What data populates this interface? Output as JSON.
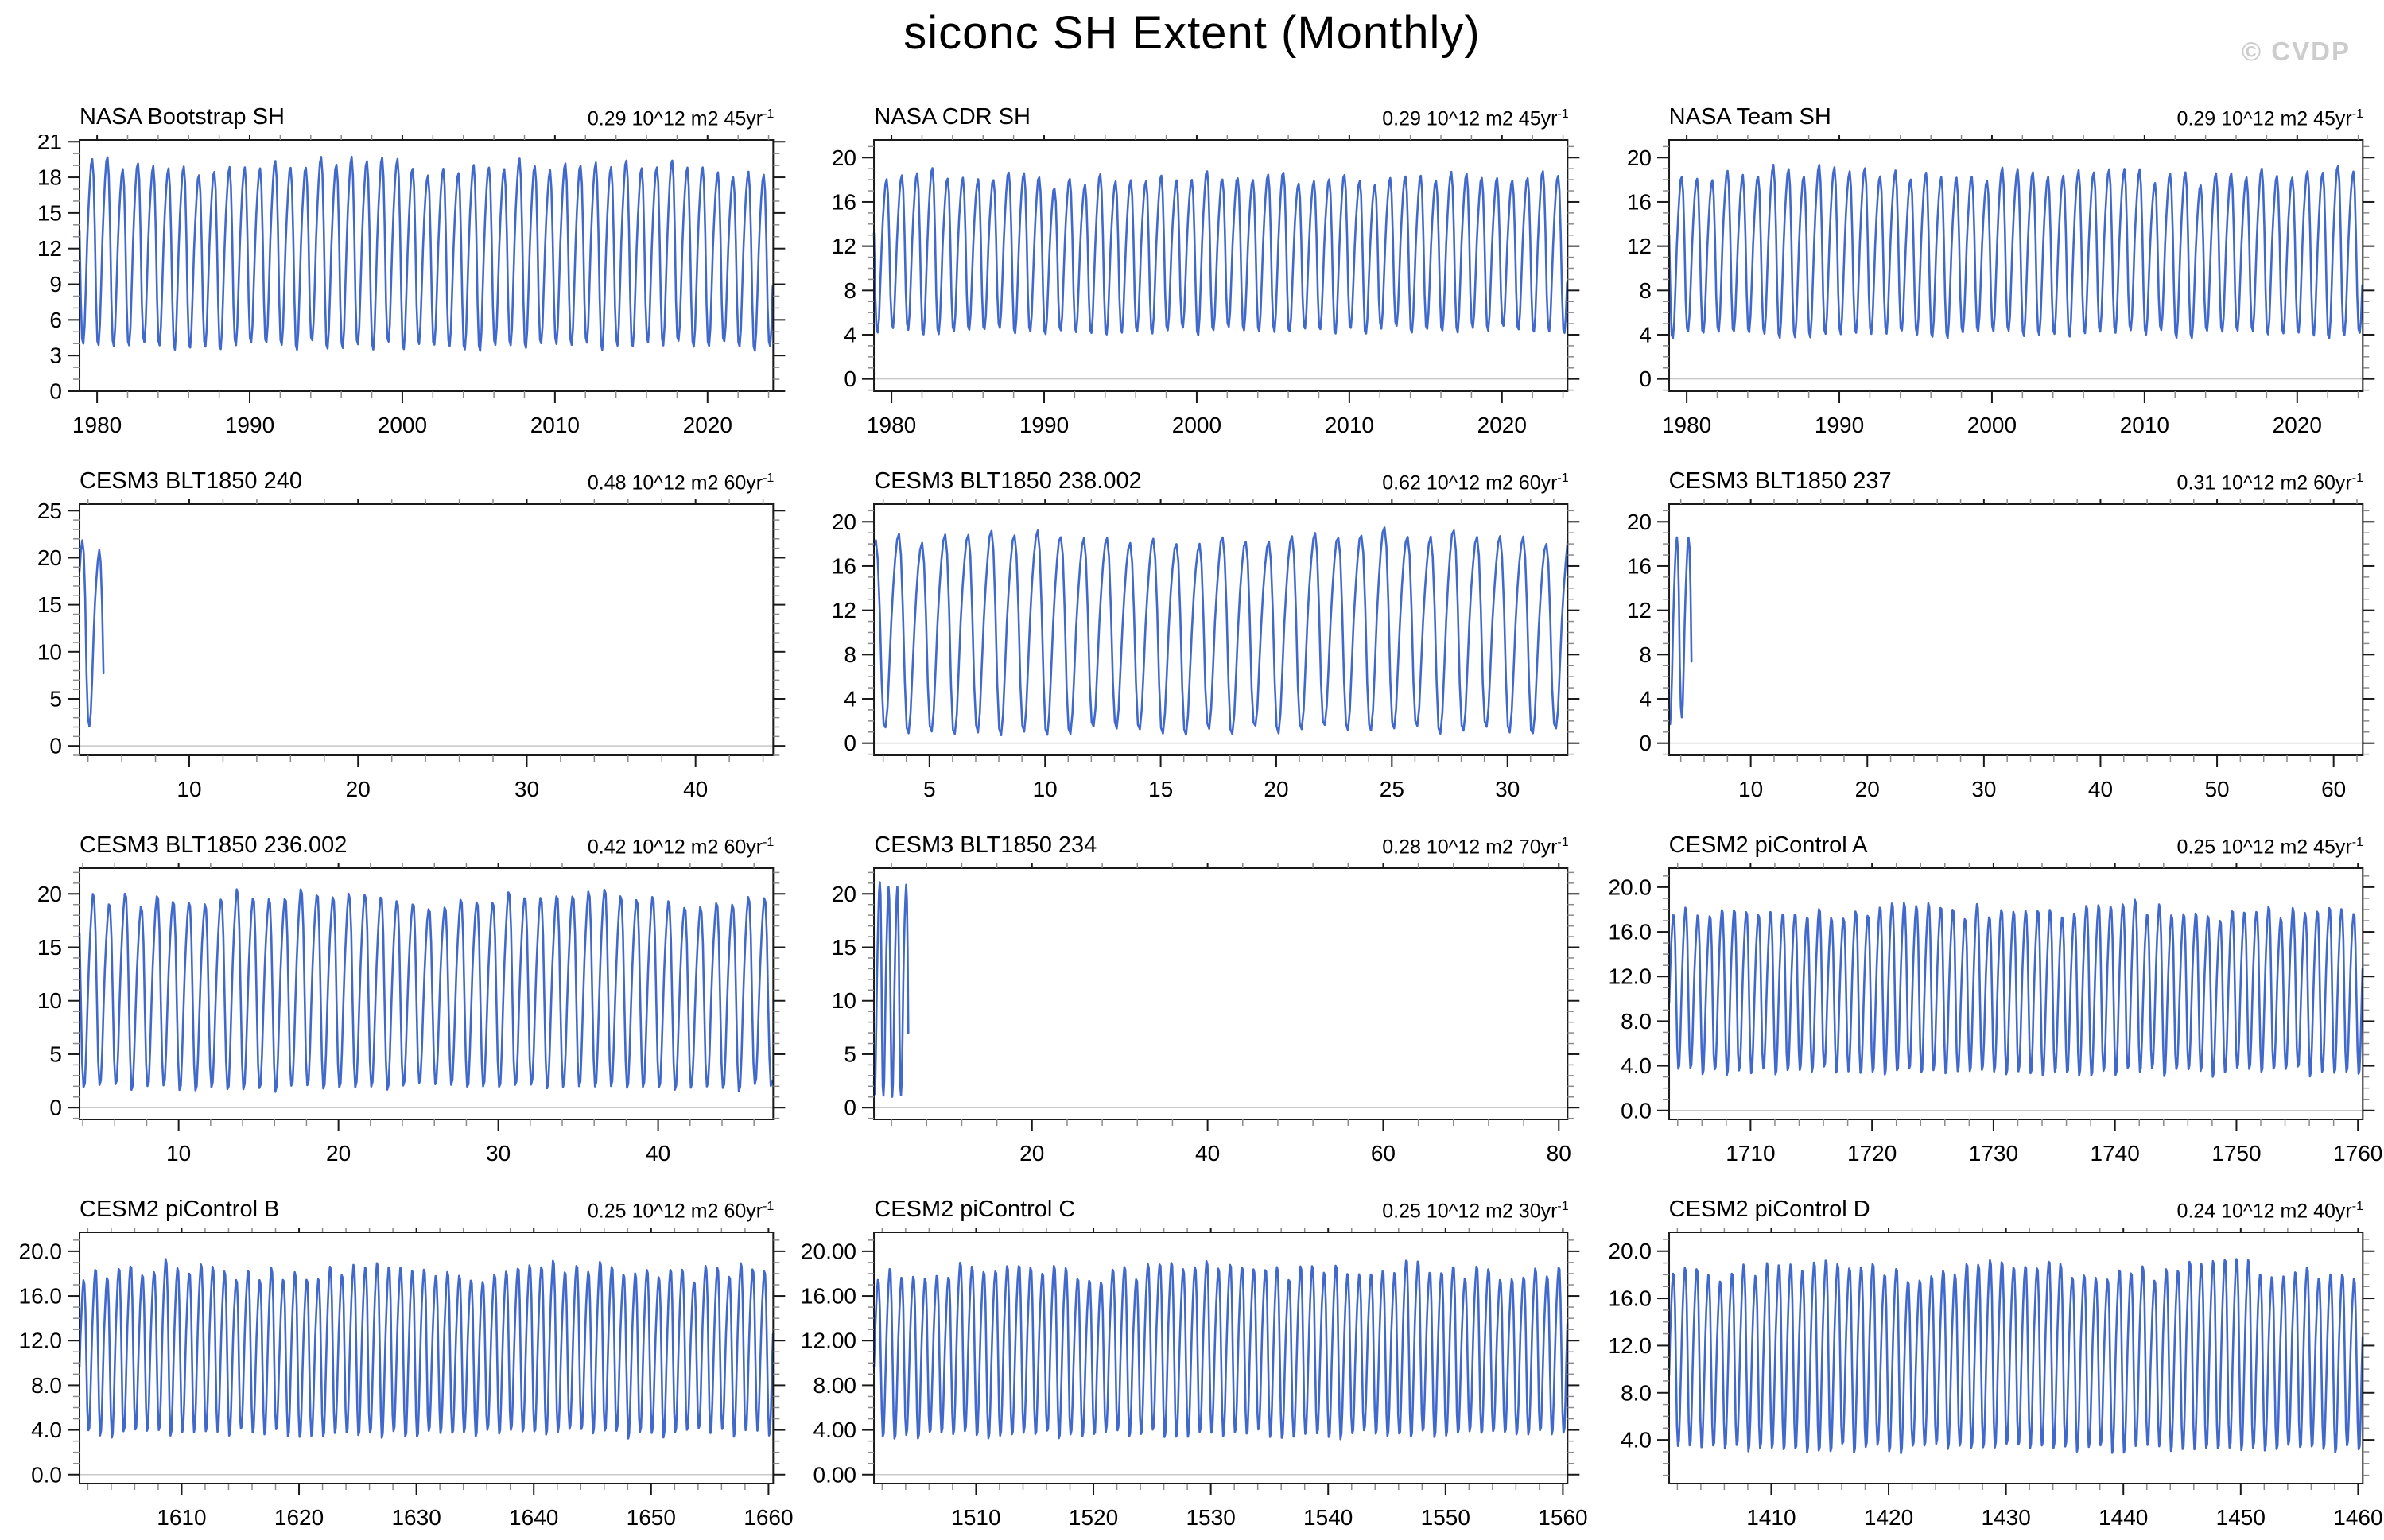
{
  "title": "siconc SH Extent (Monthly)",
  "watermark": "© CVDP",
  "line_color": "#4169cd",
  "frame_color": "#1a1a1a",
  "minor_tick_color": "#8a8a8a",
  "zero_line_color": "#c8c8c8",
  "seasonal_cycle_normalized": [
    0.05,
    0.0,
    0.07,
    0.28,
    0.52,
    0.7,
    0.84,
    0.95,
    1.0,
    0.94,
    0.7,
    0.3
  ],
  "chart_data": [
    {
      "type": "line",
      "title": "NASA Bootstrap SH",
      "trend_text": "0.29 10^12 m2 45yr",
      "trend_sup": "-1",
      "x_start": 1978.85,
      "x_end": 2024.3,
      "x_ticks": [
        1980,
        1990,
        2000,
        2010,
        2020
      ],
      "x_tick_labels": [
        "1980",
        "1990",
        "2000",
        "2010",
        "2020"
      ],
      "x_minor_step": 2,
      "y_min": 0,
      "y_max": 21.15,
      "y_ticks": [
        0,
        3,
        6,
        9,
        12,
        15,
        18,
        21
      ],
      "y_tick_labels": [
        "0",
        "3",
        "6",
        "9",
        "12",
        "15",
        "18",
        "21"
      ],
      "y_minor_step": 1,
      "seasonal_min": 3.6,
      "seasonal_max": 19.2,
      "zero_line": false,
      "seed": 11
    },
    {
      "type": "line",
      "title": "NASA CDR SH",
      "trend_text": "0.29 10^12 m2 45yr",
      "trend_sup": "-1",
      "x_start": 1978.85,
      "x_end": 2024.3,
      "x_ticks": [
        1980,
        1990,
        2000,
        2010,
        2020
      ],
      "x_tick_labels": [
        "1980",
        "1990",
        "2000",
        "2010",
        "2020"
      ],
      "x_minor_step": 2,
      "y_min": -1.1,
      "y_max": 21.6,
      "y_ticks": [
        0,
        4,
        8,
        12,
        16,
        20
      ],
      "y_tick_labels": [
        "0",
        "4",
        "8",
        "12",
        "16",
        "20"
      ],
      "y_minor_step": 1,
      "seasonal_min": 4.2,
      "seasonal_max": 18.5,
      "zero_line": true,
      "seed": 22
    },
    {
      "type": "line",
      "title": "NASA Team SH",
      "trend_text": "0.29 10^12 m2 45yr",
      "trend_sup": "-1",
      "x_start": 1978.85,
      "x_end": 2024.3,
      "x_ticks": [
        1980,
        1990,
        2000,
        2010,
        2020
      ],
      "x_tick_labels": [
        "1980",
        "1990",
        "2000",
        "2010",
        "2020"
      ],
      "x_minor_step": 2,
      "y_min": -1.1,
      "y_max": 21.6,
      "y_ticks": [
        0,
        4,
        8,
        12,
        16,
        20
      ],
      "y_tick_labels": [
        "0",
        "4",
        "8",
        "12",
        "16",
        "20"
      ],
      "y_minor_step": 1,
      "seasonal_min": 3.8,
      "seasonal_max": 18.7,
      "zero_line": true,
      "seed": 33
    },
    {
      "type": "line",
      "title": "CESM3 BLT1850 240",
      "trend_text": "0.48 10^12 m2 60yr",
      "trend_sup": "-1",
      "x_start": 3.5,
      "x_end": 44.6,
      "x_ticks": [
        10,
        20,
        30,
        40
      ],
      "x_tick_labels": [
        "10",
        "20",
        "30",
        "40"
      ],
      "x_minor_step": 2,
      "y_min": -1.0,
      "y_max": 25.7,
      "y_ticks": [
        0,
        5,
        10,
        15,
        20,
        25
      ],
      "y_tick_labels": [
        "0",
        "5",
        "10",
        "15",
        "20",
        "25"
      ],
      "y_minor_step": 1,
      "seasonal_min": 1.8,
      "seasonal_max": 21.0,
      "zero_line": true,
      "seed": 44
    },
    {
      "type": "line",
      "title": "CESM3 BLT1850 238.002",
      "trend_text": "0.62 10^12 m2 60yr",
      "trend_sup": "-1",
      "x_start": 2.6,
      "x_end": 32.6,
      "x_ticks": [
        5,
        10,
        15,
        20,
        25,
        30
      ],
      "x_tick_labels": [
        "5",
        "10",
        "15",
        "20",
        "25",
        "30"
      ],
      "x_minor_step": 1,
      "y_min": -1.1,
      "y_max": 21.6,
      "y_ticks": [
        0,
        4,
        8,
        12,
        16,
        20
      ],
      "y_tick_labels": [
        "0",
        "4",
        "8",
        "12",
        "16",
        "20"
      ],
      "y_minor_step": 1,
      "seasonal_min": 0.9,
      "seasonal_max": 18.9,
      "zero_line": true,
      "seed": 55
    },
    {
      "type": "line",
      "title": "CESM3 BLT1850 237",
      "trend_text": "0.31 10^12 m2 60yr",
      "trend_sup": "-1",
      "x_start": 3.0,
      "x_end": 62.5,
      "x_ticks": [
        10,
        20,
        30,
        40,
        50,
        60
      ],
      "x_tick_labels": [
        "10",
        "20",
        "30",
        "40",
        "50",
        "60"
      ],
      "x_minor_step": 2,
      "y_min": -1.1,
      "y_max": 21.6,
      "y_ticks": [
        0,
        4,
        8,
        12,
        16,
        20
      ],
      "y_tick_labels": [
        "0",
        "4",
        "8",
        "12",
        "16",
        "20"
      ],
      "y_minor_step": 1,
      "seasonal_min": 2.2,
      "seasonal_max": 19.4,
      "zero_line": true,
      "seed": 66
    },
    {
      "type": "line",
      "title": "CESM3 BLT1850 236.002",
      "trend_text": "0.42 10^12 m2 60yr",
      "trend_sup": "-1",
      "x_start": 3.8,
      "x_end": 47.2,
      "x_ticks": [
        10,
        20,
        30,
        40
      ],
      "x_tick_labels": [
        "10",
        "20",
        "30",
        "40"
      ],
      "x_minor_step": 2,
      "y_min": -1.1,
      "y_max": 22.4,
      "y_ticks": [
        0,
        5,
        10,
        15,
        20
      ],
      "y_tick_labels": [
        "0",
        "5",
        "10",
        "15",
        "20"
      ],
      "y_minor_step": 1,
      "seasonal_min": 1.6,
      "seasonal_max": 20.0,
      "zero_line": true,
      "seed": 77
    },
    {
      "type": "line",
      "title": "CESM3 BLT1850 234",
      "trend_text": "0.28 10^12 m2 70yr",
      "trend_sup": "-1",
      "x_start": 2.0,
      "x_end": 81.0,
      "x_ticks": [
        20,
        40,
        60,
        80
      ],
      "x_tick_labels": [
        "20",
        "40",
        "60",
        "80"
      ],
      "x_minor_step": 4,
      "y_min": -1.1,
      "y_max": 22.4,
      "y_ticks": [
        0,
        5,
        10,
        15,
        20
      ],
      "y_tick_labels": [
        "0",
        "5",
        "10",
        "15",
        "20"
      ],
      "y_minor_step": 1,
      "seasonal_min": 1.2,
      "seasonal_max": 20.4,
      "zero_line": true,
      "seed": 88
    },
    {
      "type": "line",
      "title": "CESM2 piControl A",
      "trend_text": "0.25 10^12 m2 45yr",
      "trend_sup": "-1",
      "x_start": 1703.3,
      "x_end": 1760.4,
      "x_ticks": [
        1710,
        1720,
        1730,
        1740,
        1750,
        1760
      ],
      "x_tick_labels": [
        "1710",
        "1720",
        "1730",
        "1740",
        "1750",
        "1760"
      ],
      "x_minor_step": 2,
      "y_min": -0.8,
      "y_max": 21.7,
      "y_ticks": [
        0,
        4,
        8,
        12,
        16,
        20
      ],
      "y_tick_labels": [
        "0.0",
        "4.0",
        "8.0",
        "12.0",
        "16.0",
        "20.0"
      ],
      "y_minor_step": 1,
      "seasonal_min": 3.2,
      "seasonal_max": 18.1,
      "zero_line": true,
      "seed": 99
    },
    {
      "type": "line",
      "title": "CESM2 piControl B",
      "trend_text": "0.25 10^12 m2 60yr",
      "trend_sup": "-1",
      "x_start": 1601.3,
      "x_end": 1660.4,
      "x_ticks": [
        1610,
        1620,
        1630,
        1640,
        1650,
        1660
      ],
      "x_tick_labels": [
        "1610",
        "1620",
        "1630",
        "1640",
        "1650",
        "1660"
      ],
      "x_minor_step": 2,
      "y_min": -0.8,
      "y_max": 21.7,
      "y_ticks": [
        0,
        4,
        8,
        12,
        16,
        20
      ],
      "y_tick_labels": [
        "0.0",
        "4.0",
        "8.0",
        "12.0",
        "16.0",
        "20.0"
      ],
      "y_minor_step": 1,
      "seasonal_min": 3.4,
      "seasonal_max": 18.5,
      "zero_line": true,
      "seed": 110
    },
    {
      "type": "line",
      "title": "CESM2 piControl C",
      "trend_text": "0.25 10^12 m2 30yr",
      "trend_sup": "-1",
      "x_start": 1501.3,
      "x_end": 1560.4,
      "x_ticks": [
        1510,
        1520,
        1530,
        1540,
        1550,
        1560
      ],
      "x_tick_labels": [
        "1510",
        "1520",
        "1530",
        "1540",
        "1550",
        "1560"
      ],
      "x_minor_step": 2,
      "y_min": -0.8,
      "y_max": 21.7,
      "y_ticks": [
        0,
        4,
        8,
        12,
        16,
        20
      ],
      "y_tick_labels": [
        "0.00",
        "4.00",
        "8.00",
        "12.00",
        "16.00",
        "20.00"
      ],
      "y_minor_step": 1,
      "seasonal_min": 3.3,
      "seasonal_max": 18.6,
      "zero_line": true,
      "seed": 121
    },
    {
      "type": "line",
      "title": "CESM2 piControl D",
      "trend_text": "0.24 10^12 m2 40yr",
      "trend_sup": "-1",
      "x_start": 1401.3,
      "x_end": 1460.4,
      "x_ticks": [
        1410,
        1420,
        1430,
        1440,
        1450,
        1460
      ],
      "x_tick_labels": [
        "1410",
        "1420",
        "1430",
        "1440",
        "1450",
        "1460"
      ],
      "x_minor_step": 2,
      "y_min": 0.3,
      "y_max": 21.6,
      "y_ticks": [
        4,
        8,
        12,
        16,
        20
      ],
      "y_tick_labels": [
        "4.0",
        "8.0",
        "12.0",
        "16.0",
        "20.0"
      ],
      "y_minor_step": 1,
      "seasonal_min": 3.0,
      "seasonal_max": 18.7,
      "zero_line": false,
      "seed": 132
    }
  ]
}
